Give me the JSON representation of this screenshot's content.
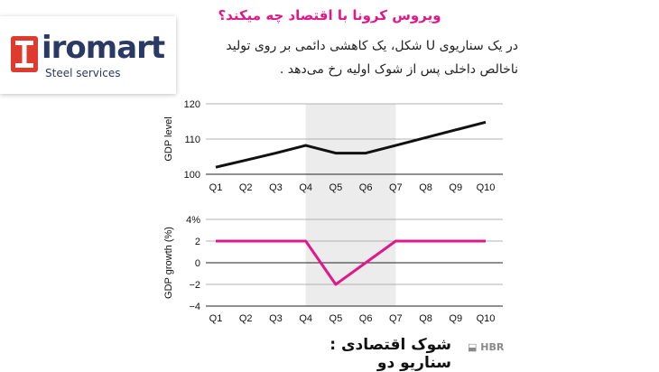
{
  "logo": {
    "brand": "iromart",
    "tagline": "Steel services",
    "mark_color": "#e03a2f",
    "text_color": "#2b3a64"
  },
  "headline": "ویروس کرونا با اقتصاد چه میکند؟",
  "subtitle_line1": "در یک سناریوی U شکل، یک کاهشی دائمی بر روی تولید",
  "subtitle_line2": "ناخالص داخلی پس از شوک اولیه رخ می‌دهد .",
  "footer_title": "شوک اقتصادی : سناریو دو",
  "source_label": "HBR",
  "chart_data": [
    {
      "type": "line",
      "categories": [
        "Q1",
        "Q2",
        "Q3",
        "Q4",
        "Q5",
        "Q6",
        "Q7",
        "Q8",
        "Q9",
        "Q10"
      ],
      "series": [
        {
          "values": [
            102,
            104,
            106,
            108.2,
            106,
            106,
            108.2,
            110.4,
            112.6,
            114.8
          ],
          "color": "#111111"
        }
      ],
      "ylabel": "GDP level",
      "yticks": [
        "100",
        "110",
        "120"
      ],
      "ylim": [
        100,
        120
      ],
      "shaded_range": [
        "Q4",
        "Q7"
      ],
      "grid": "horizontal"
    },
    {
      "type": "line",
      "categories": [
        "Q1",
        "Q2",
        "Q3",
        "Q4",
        "Q5",
        "Q6",
        "Q7",
        "Q8",
        "Q9",
        "Q10"
      ],
      "series": [
        {
          "values": [
            2,
            2,
            2,
            2,
            -2,
            0,
            2,
            2,
            2,
            2
          ],
          "color": "#e0188a"
        }
      ],
      "ylabel": "GDP growth (%)",
      "yticks": [
        "−4",
        "−2",
        "0",
        "2",
        "4%"
      ],
      "ylim": [
        -4,
        4
      ],
      "shaded_range": [
        "Q4",
        "Q7"
      ],
      "grid": "horizontal"
    }
  ]
}
